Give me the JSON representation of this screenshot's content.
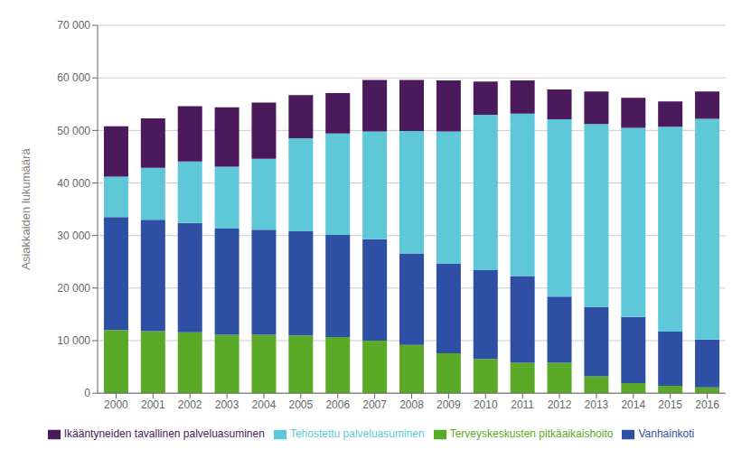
{
  "chart_data": {
    "type": "bar",
    "stacked": true,
    "grid": true,
    "legend": "bottom",
    "ylabel": "Asiakkaiden lukumäärä",
    "categories": [
      "2000",
      "2001",
      "2002",
      "2003",
      "2004",
      "2005",
      "2006",
      "2007",
      "2008",
      "2009",
      "2010",
      "2011",
      "2012",
      "2013",
      "2014",
      "2015",
      "2016"
    ],
    "series": [
      {
        "name": "Terveyskeskusten pitkäaikaishoito",
        "color": "#5aaa28",
        "values": [
          12000,
          11800,
          11600,
          11100,
          11100,
          11000,
          10700,
          10000,
          9200,
          7600,
          6500,
          5800,
          5800,
          3200,
          1900,
          1400,
          1100
        ]
      },
      {
        "name": "Vanhainkoti",
        "color": "#2e4fa3",
        "values": [
          21500,
          21200,
          20800,
          20200,
          20000,
          19800,
          19400,
          19300,
          17400,
          17000,
          16900,
          16500,
          12600,
          13200,
          12600,
          10300,
          9100
        ]
      },
      {
        "name": "Tehostettu palveluasuminen",
        "color": "#5ec8d8",
        "values": [
          7700,
          9900,
          11700,
          11800,
          13500,
          17700,
          19300,
          20500,
          23300,
          25200,
          29600,
          30900,
          33700,
          34800,
          36000,
          39000,
          42000
        ]
      },
      {
        "name": "Ikääntyneiden tavallinen palveluasuminen",
        "color": "#4b1a5a",
        "values": [
          9600,
          9400,
          10500,
          11300,
          10700,
          8200,
          7700,
          9800,
          9700,
          9700,
          6300,
          6300,
          5700,
          6200,
          5700,
          4800,
          5200
        ]
      }
    ],
    "ylim": [
      0,
      70000
    ],
    "yticks": [
      0,
      {
        "value": 10000,
        "label": "10 000"
      },
      {
        "value": 20000,
        "label": "20 000"
      },
      {
        "value": 30000,
        "label": "30 000"
      },
      {
        "value": 40000,
        "label": "40 000"
      },
      {
        "value": 50000,
        "label": "50 000"
      },
      {
        "value": 60000,
        "label": "60 000"
      },
      {
        "value": 70000,
        "label": "70 000"
      }
    ]
  }
}
